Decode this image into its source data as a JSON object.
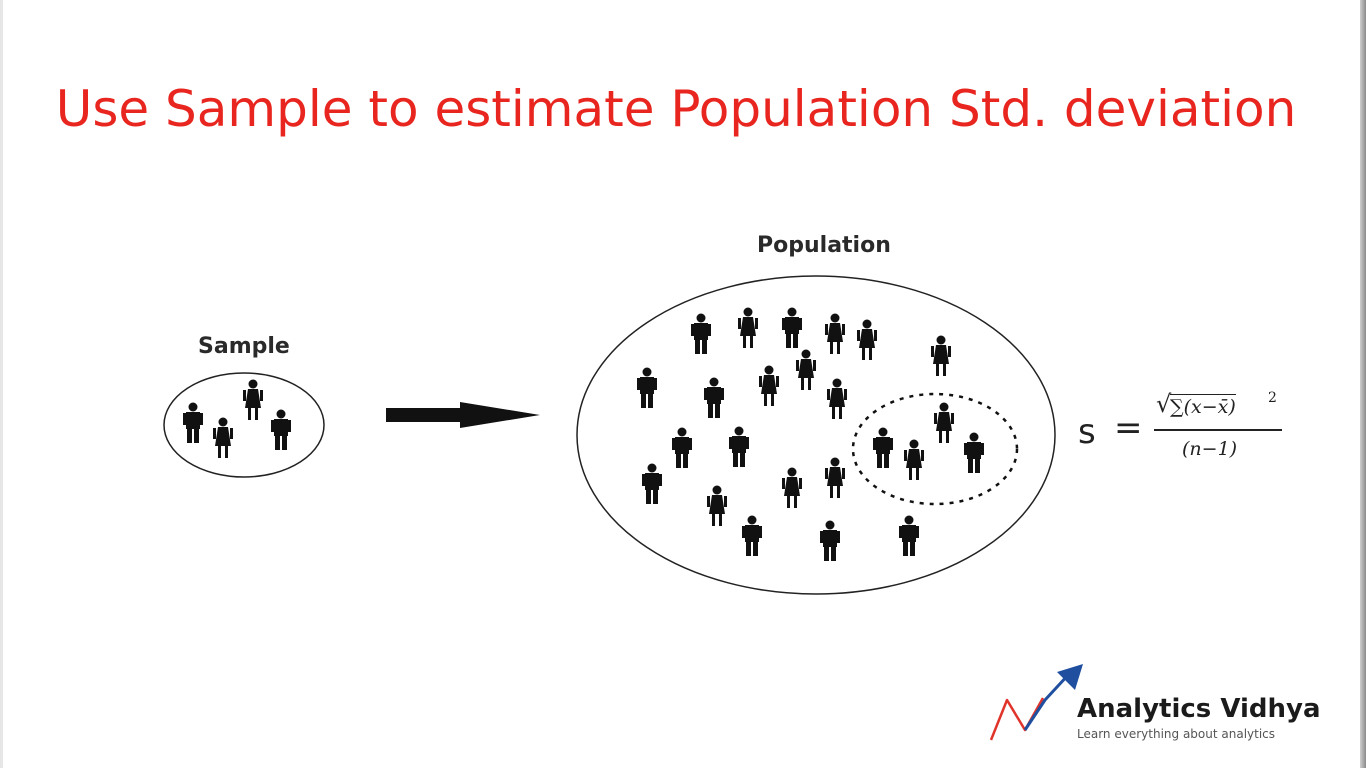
{
  "slide": {
    "title": "Use Sample to estimate Population Std. deviation",
    "title_color": "#e8261f"
  },
  "diagram": {
    "sample_label": "Sample",
    "population_label": "Population",
    "arrow_icon": "right-arrow-icon",
    "person_icon": "person-icon"
  },
  "formula": {
    "lhs": "s",
    "equals": "=",
    "sqrt_symbol": "√",
    "radicand": "∑(x−x̄)",
    "exponent": "2",
    "denominator": "(n−1)"
  },
  "logo": {
    "brand": "Analytics Vidhya",
    "tagline": "Learn everything about analytics",
    "accent_red": "#e0342b",
    "accent_blue": "#1f4f9e"
  }
}
